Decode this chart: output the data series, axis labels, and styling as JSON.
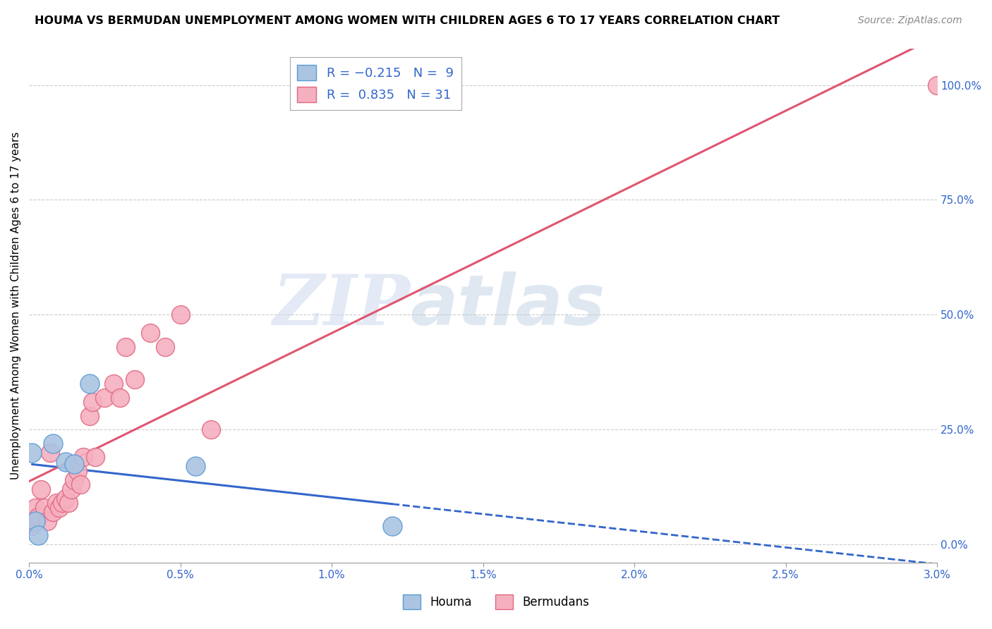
{
  "title": "HOUMA VS BERMUDAN UNEMPLOYMENT AMONG WOMEN WITH CHILDREN AGES 6 TO 17 YEARS CORRELATION CHART",
  "source": "Source: ZipAtlas.com",
  "ylabel": "Unemployment Among Women with Children Ages 6 to 17 years",
  "xlim": [
    0.0,
    0.03
  ],
  "ylim": [
    -0.04,
    1.08
  ],
  "xticks": [
    0.0,
    0.005,
    0.01,
    0.015,
    0.02,
    0.025,
    0.03
  ],
  "xticklabels": [
    "0.0%",
    "0.5%",
    "1.0%",
    "1.5%",
    "2.0%",
    "2.5%",
    "3.0%"
  ],
  "yticks_right": [
    0.0,
    0.25,
    0.5,
    0.75,
    1.0
  ],
  "ytick_right_labels": [
    "0.0%",
    "25.0%",
    "50.0%",
    "75.0%",
    "100.0%"
  ],
  "houma_color": "#aac4e2",
  "houma_edge": "#5b9bd5",
  "bermuda_color": "#f5b0c0",
  "bermuda_edge": "#e06880",
  "houma_line_color": "#3366cc",
  "bermuda_line_color": "#e05570",
  "legend_R_houma": "R = -0.215",
  "legend_N_houma": "N =  9",
  "legend_R_bermuda": "R =  0.835",
  "legend_N_bermuda": "N = 31",
  "watermark_zip": "ZIP",
  "watermark_atlas": "atlas",
  "houma_x": [
    0.0001,
    0.0002,
    0.0003,
    0.0008,
    0.0012,
    0.0015,
    0.002,
    0.0055,
    0.012
  ],
  "houma_y": [
    0.2,
    0.05,
    0.02,
    0.22,
    0.18,
    0.175,
    0.35,
    0.17,
    0.04
  ],
  "bermuda_x": [
    0.0001,
    0.0002,
    0.0003,
    0.0004,
    0.0005,
    0.0006,
    0.0007,
    0.0008,
    0.0009,
    0.001,
    0.0011,
    0.0012,
    0.0013,
    0.0014,
    0.0015,
    0.0016,
    0.0017,
    0.0018,
    0.002,
    0.0021,
    0.0022,
    0.0025,
    0.0028,
    0.003,
    0.0032,
    0.0035,
    0.004,
    0.0045,
    0.005,
    0.006,
    0.03
  ],
  "bermuda_y": [
    0.04,
    0.08,
    0.06,
    0.12,
    0.08,
    0.05,
    0.2,
    0.07,
    0.09,
    0.08,
    0.09,
    0.1,
    0.09,
    0.12,
    0.14,
    0.16,
    0.13,
    0.19,
    0.28,
    0.31,
    0.19,
    0.32,
    0.35,
    0.32,
    0.43,
    0.36,
    0.46,
    0.43,
    0.5,
    0.25,
    1.0
  ],
  "background_color": "#ffffff",
  "grid_color": "#cccccc"
}
